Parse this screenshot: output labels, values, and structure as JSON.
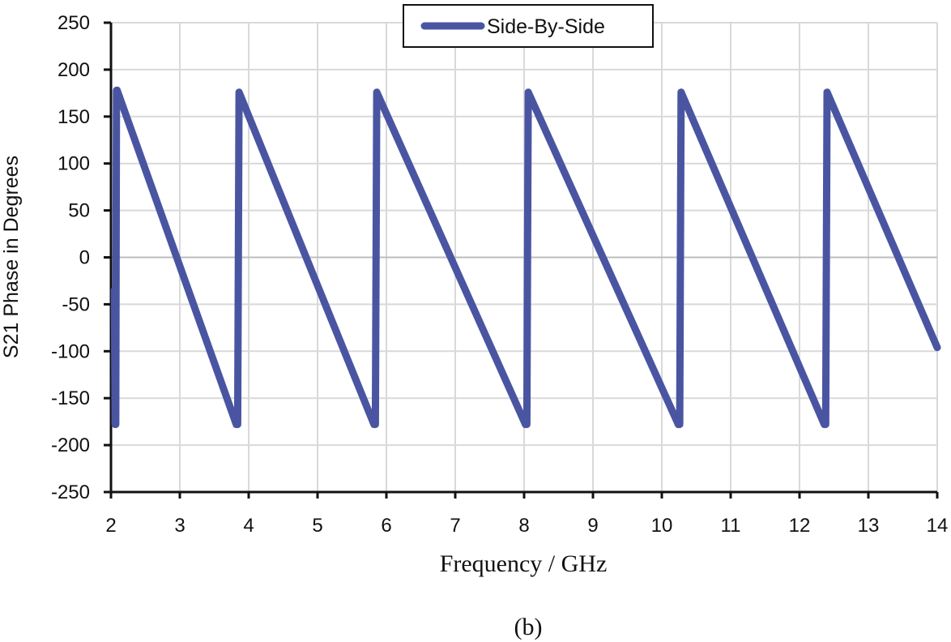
{
  "chart_data": {
    "type": "line",
    "title": "",
    "xlabel": "Frequency / GHz",
    "ylabel": "S21 Phase in Degrees",
    "xlim": [
      2,
      14
    ],
    "ylim": [
      -250,
      250
    ],
    "xticks": [
      2,
      3,
      4,
      5,
      6,
      7,
      8,
      9,
      10,
      11,
      12,
      13,
      14
    ],
    "yticks": [
      250,
      200,
      150,
      100,
      50,
      0,
      -50,
      -100,
      -150,
      -200,
      -250
    ],
    "grid": true,
    "legend_position": "top-center",
    "series": [
      {
        "name": "Side-By-Side",
        "color": "#4a55a2",
        "x": [
          2.05,
          2.06,
          2.07,
          2.08,
          2.09,
          3.82,
          3.84,
          3.86,
          5.82,
          5.84,
          5.86,
          8.02,
          8.04,
          8.06,
          10.24,
          10.26,
          10.28,
          12.36,
          12.38,
          12.4,
          14.0
        ],
        "y": [
          -35,
          -178,
          -178,
          178,
          178,
          -178,
          -178,
          176,
          -178,
          -178,
          176,
          -178,
          -178,
          176,
          -178,
          -178,
          176,
          -178,
          -178,
          176,
          -96
        ]
      }
    ],
    "caption": "(b)"
  }
}
